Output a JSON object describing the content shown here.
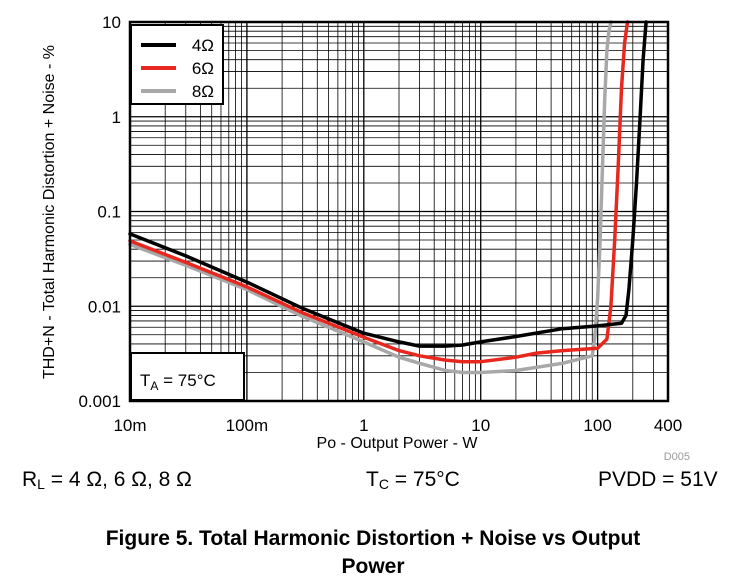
{
  "chart_data": {
    "type": "line",
    "x_scale": "log",
    "y_scale": "log",
    "xlim": [
      0.01,
      400
    ],
    "ylim": [
      0.001,
      10
    ],
    "xlabel": "Po - Output Power - W",
    "ylabel": "THD+N - Total Harmonic Distortion + Noise - %",
    "x_ticks": [
      {
        "value": 0.01,
        "label": "10m"
      },
      {
        "value": 0.1,
        "label": "100m"
      },
      {
        "value": 1,
        "label": "1"
      },
      {
        "value": 10,
        "label": "10"
      },
      {
        "value": 100,
        "label": "100"
      },
      {
        "value": 400,
        "label": "400"
      }
    ],
    "y_ticks": [
      {
        "value": 0.001,
        "label": "0.001"
      },
      {
        "value": 0.01,
        "label": "0.01"
      },
      {
        "value": 0.1,
        "label": "0.1"
      },
      {
        "value": 1,
        "label": "1"
      },
      {
        "value": 10,
        "label": "10"
      }
    ],
    "grid": true,
    "legend_position": "top-left",
    "annotation": {
      "main": "T",
      "sub": "A",
      "rest": " = 75°C"
    },
    "code": "D005",
    "series": [
      {
        "name": "4Ω",
        "color": "#000000",
        "x": [
          0.01,
          0.03,
          0.1,
          0.3,
          1,
          2,
          3,
          5,
          7,
          10,
          20,
          50,
          100,
          160,
          175,
          185,
          200,
          215,
          230,
          245,
          260
        ],
        "y": [
          0.058,
          0.034,
          0.018,
          0.0095,
          0.0052,
          0.0042,
          0.0038,
          0.0038,
          0.0039,
          0.0042,
          0.0048,
          0.0058,
          0.0062,
          0.0066,
          0.008,
          0.015,
          0.05,
          0.2,
          0.9,
          4,
          10
        ]
      },
      {
        "name": "6Ω",
        "color": "#e8281e",
        "x": [
          0.01,
          0.03,
          0.1,
          0.3,
          1,
          2,
          3,
          5,
          7,
          10,
          20,
          30,
          50,
          100,
          120,
          130,
          140,
          150,
          160,
          170,
          180
        ],
        "y": [
          0.049,
          0.029,
          0.016,
          0.0085,
          0.0047,
          0.0034,
          0.003,
          0.0027,
          0.0026,
          0.0026,
          0.0029,
          0.0032,
          0.0034,
          0.0036,
          0.0045,
          0.01,
          0.05,
          0.3,
          2,
          6,
          10
        ]
      },
      {
        "name": "8Ω",
        "color": "#a8a8a8",
        "x": [
          0.01,
          0.03,
          0.1,
          0.3,
          1,
          2,
          3,
          5,
          7,
          10,
          20,
          50,
          90,
          95,
          100,
          105,
          110,
          115,
          120,
          125,
          130
        ],
        "y": [
          0.045,
          0.027,
          0.015,
          0.0078,
          0.0042,
          0.0029,
          0.0025,
          0.0021,
          0.002,
          0.002,
          0.0021,
          0.0025,
          0.003,
          0.005,
          0.012,
          0.05,
          0.3,
          1.5,
          5,
          8,
          10
        ]
      }
    ]
  },
  "conditions": {
    "rl": {
      "main": "R",
      "sub": "L",
      "rest": " = 4 Ω, 6 Ω, 8 Ω"
    },
    "tc": {
      "main": "T",
      "sub": "C",
      "rest": " = 75°C"
    },
    "pvdd": "PVDD = 51V"
  },
  "caption": [
    "Figure 5. Total Harmonic Distortion + Noise vs Output",
    "Power"
  ]
}
